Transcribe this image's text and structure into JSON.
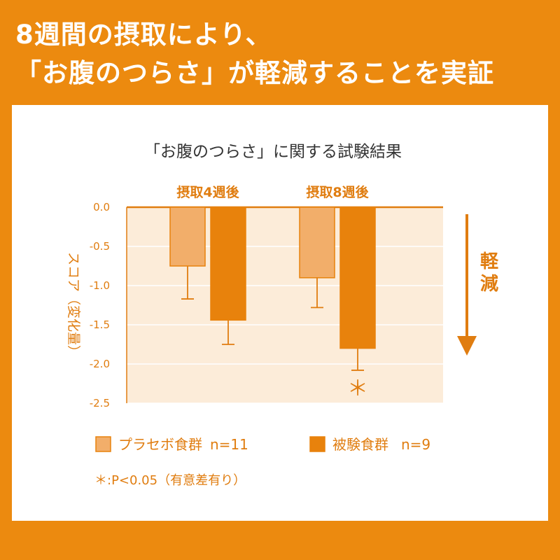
{
  "headline": {
    "line1": "8週間の摂取により、",
    "line2": "「お腹のつらさ」が軽減することを実証"
  },
  "colors": {
    "background": "#ec8a0f",
    "placebo": "#f2ae6a",
    "test": "#e8820c",
    "plot_bg": "#fcecd9",
    "accent": "#e07d10"
  },
  "chart_data": {
    "type": "bar",
    "title": "「お腹のつらさ」に関する試験結果",
    "ylabel": "スコア（変化量）",
    "ylim": [
      -2.5,
      0.0
    ],
    "yticks": [
      "0.0",
      "-0.5",
      "-1.0",
      "-1.5",
      "-2.0",
      "-2.5"
    ],
    "ytick_values": [
      0.0,
      -0.5,
      -1.0,
      -1.5,
      -2.0,
      -2.5
    ],
    "categories": [
      "摂取4週後",
      "摂取8週後"
    ],
    "series": [
      {
        "name": "プラセボ食群",
        "n_label": "n=11",
        "values": [
          -0.75,
          -0.9
        ],
        "errors": [
          0.42,
          0.38
        ]
      },
      {
        "name": "被験食群",
        "n_label": "n=9",
        "values": [
          -1.44,
          -1.8
        ],
        "errors": [
          0.31,
          0.28
        ]
      }
    ],
    "significance": {
      "mark": "＊",
      "category_index": 1,
      "series_index": 1
    },
    "side_label": "軽減",
    "footnote": "＊:P<0.05（有意差有り）",
    "grid": true,
    "legend_position": "bottom"
  }
}
